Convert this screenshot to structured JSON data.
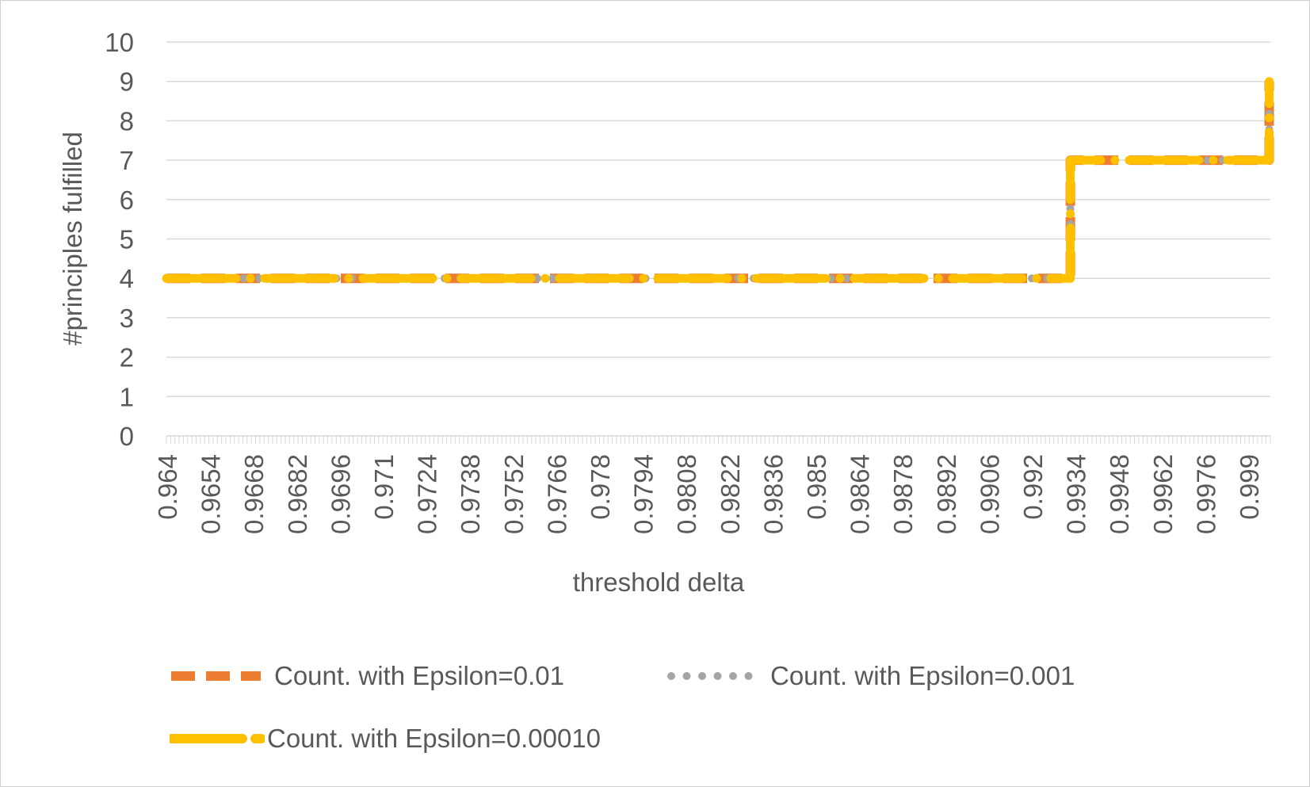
{
  "chart_data": {
    "type": "line",
    "title": "",
    "xlabel": "threshold delta",
    "ylabel": "#principles fulfilled",
    "ylim": [
      0,
      10
    ],
    "yticks": [
      "0",
      "1",
      "2",
      "3",
      "4",
      "5",
      "6",
      "7",
      "8",
      "9",
      "10"
    ],
    "x_start": 0.964,
    "x_end": 1.0002,
    "xtick_labels": [
      "0.964",
      "0.9654",
      "0.9668",
      "0.9682",
      "0.9696",
      "0.971",
      "0.9724",
      "0.9738",
      "0.9752",
      "0.9766",
      "0.978",
      "0.9794",
      "0.9808",
      "0.9822",
      "0.9836",
      "0.985",
      "0.9864",
      "0.9878",
      "0.9892",
      "0.9906",
      "0.992",
      "0.9934",
      "0.9948",
      "0.9962",
      "0.9976",
      "0.999"
    ],
    "grid": true,
    "legend_position": "bottom",
    "series": [
      {
        "name": "Count. with Epsilon=0.01",
        "color": "#ED7D31",
        "style": "dashed",
        "points": [
          [
            0.964,
            4
          ],
          [
            0.99364,
            4
          ],
          [
            0.99364,
            7
          ],
          [
            1.00016,
            7
          ],
          [
            1.00016,
            9
          ]
        ]
      },
      {
        "name": "Count. with Epsilon=0.001",
        "color": "#A5A5A5",
        "style": "dotted",
        "points": [
          [
            0.964,
            4
          ],
          [
            0.99364,
            4
          ],
          [
            0.99364,
            7
          ],
          [
            1.00016,
            7
          ],
          [
            1.00016,
            9
          ]
        ]
      },
      {
        "name": "Count. with Epsilon=0.00010",
        "color": "#FFC000",
        "style": "long-dash-dot",
        "points": [
          [
            0.964,
            4
          ],
          [
            0.99364,
            4
          ],
          [
            0.99364,
            7
          ],
          [
            1.00016,
            7
          ],
          [
            1.00016,
            9
          ]
        ]
      }
    ]
  }
}
